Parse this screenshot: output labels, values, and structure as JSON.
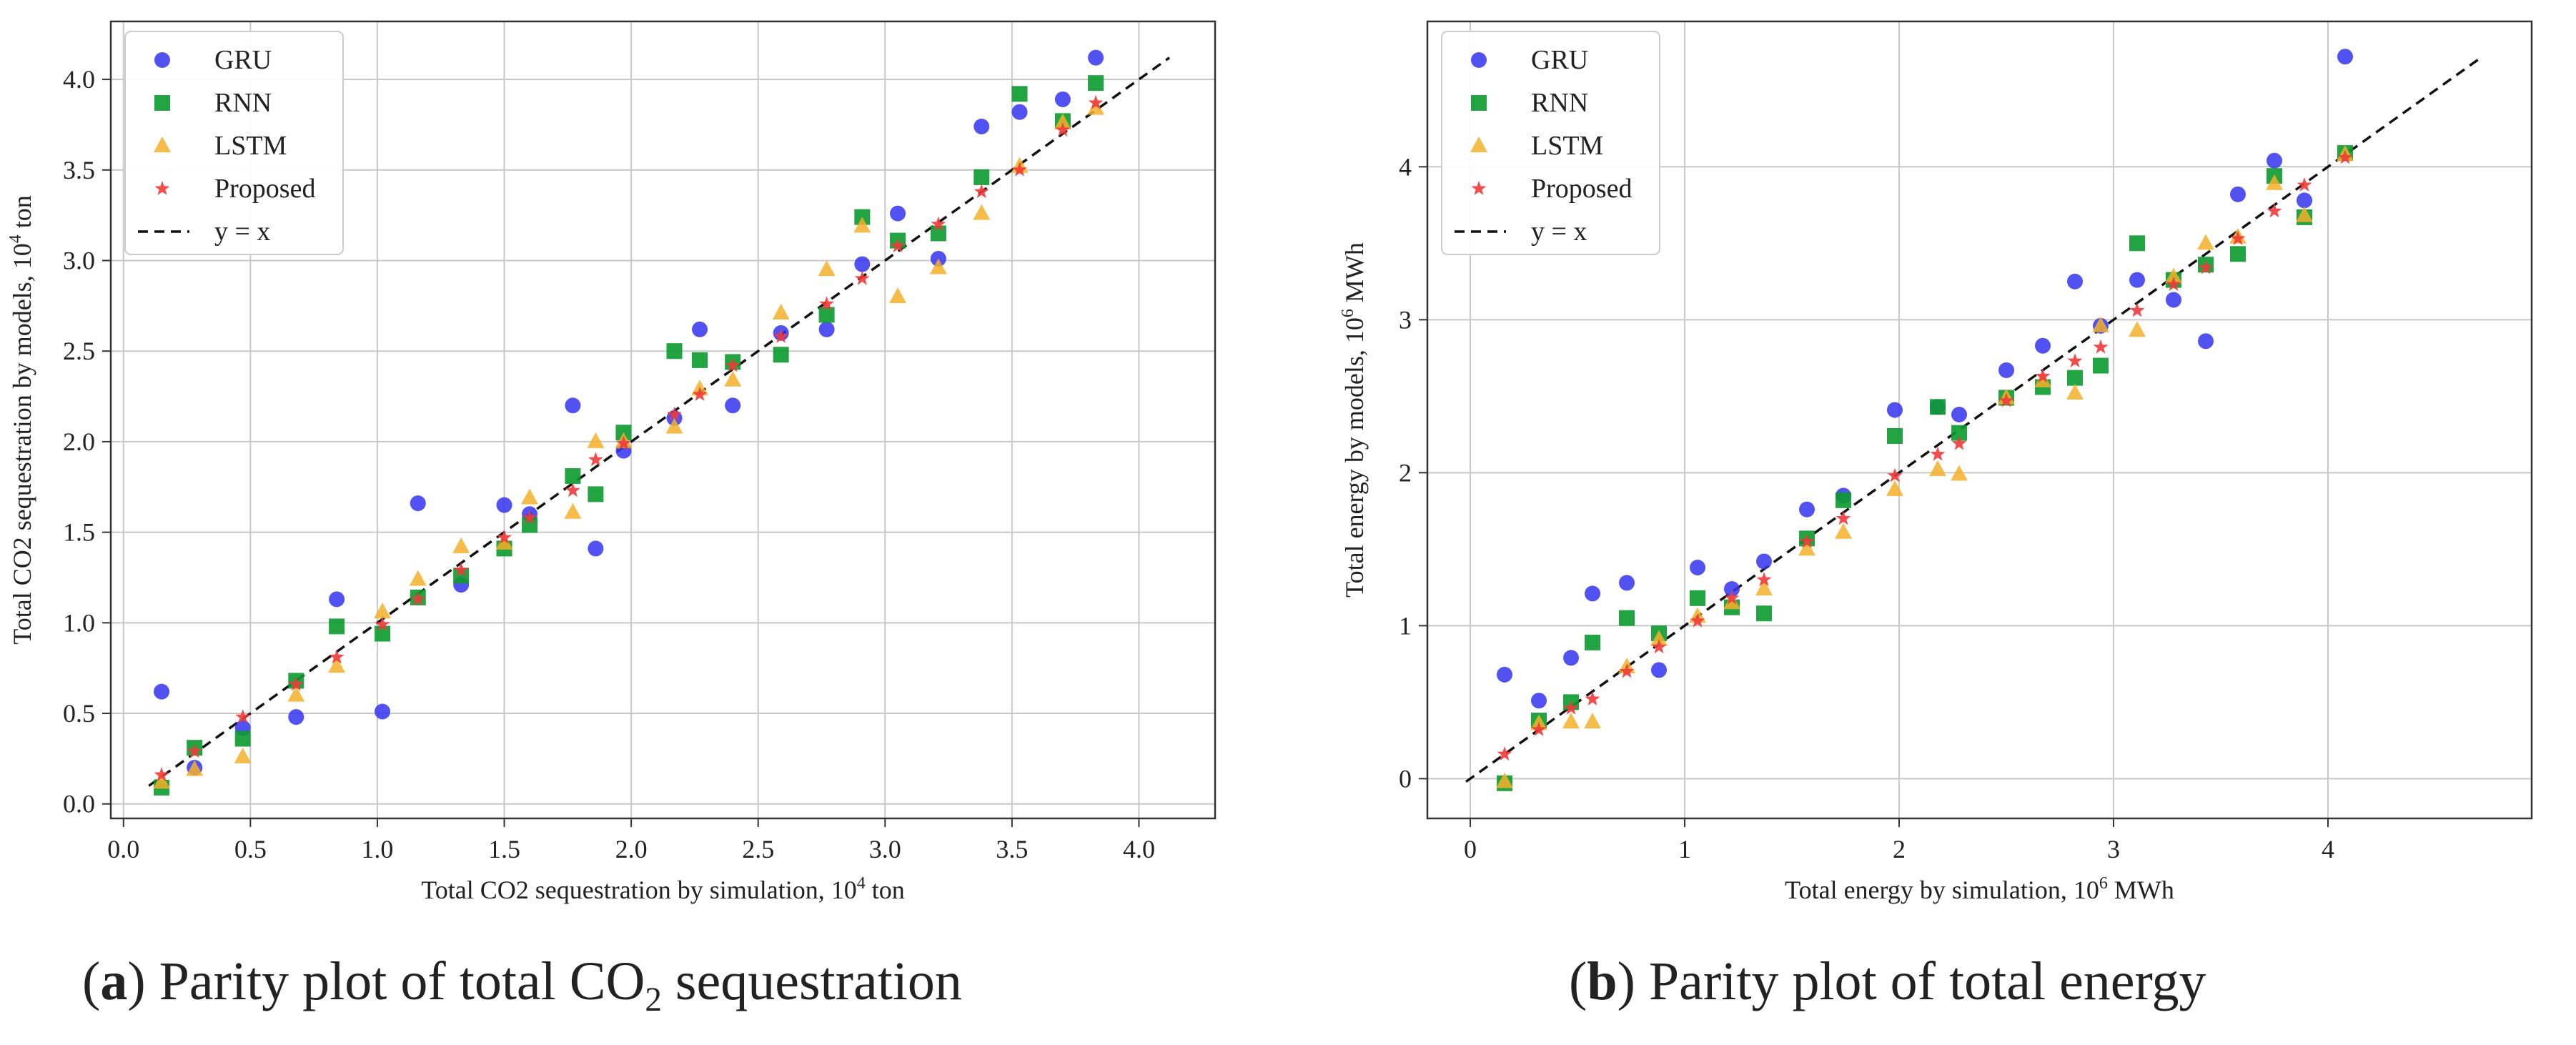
{
  "colors": {
    "gru": "#3434f0",
    "rnn": "#0a9a2e",
    "lstm": "#f5b02a",
    "proposed": "#f03a3a",
    "identity": "#111111",
    "grid": "#c8c8c8"
  },
  "legend_labels": [
    "GRU",
    "RNN",
    "LSTM",
    "Proposed",
    "y = x"
  ],
  "captions": {
    "a": {
      "letter": "a",
      "prefix": "Parity plot of total CO",
      "sub": "2",
      "suffix": " sequestration"
    },
    "b": {
      "letter": "b",
      "text": "Parity plot of total energy"
    }
  },
  "chart_data": [
    {
      "type": "scatter",
      "id": "a",
      "xlabel": {
        "pre": "Total CO2 sequestration by simulation, 10",
        "sup": "4",
        "post": " ton"
      },
      "ylabel": {
        "pre": "Total CO2 sequestration by models, 10",
        "sup": "4",
        "post": " ton"
      },
      "xlim": [
        -0.05,
        4.3
      ],
      "ylim": [
        -0.08,
        4.32
      ],
      "xticks": [
        0.0,
        0.5,
        1.0,
        1.5,
        2.0,
        2.5,
        3.0,
        3.5,
        4.0
      ],
      "xtick_labels": [
        "0.0",
        "0.5",
        "1.0",
        "1.5",
        "2.0",
        "2.5",
        "3.0",
        "3.5",
        "4.0"
      ],
      "yticks": [
        0.0,
        0.5,
        1.0,
        1.5,
        2.0,
        2.5,
        3.0,
        3.5,
        4.0
      ],
      "ytick_labels": [
        "0.0",
        "0.5",
        "1.0",
        "1.5",
        "2.0",
        "2.5",
        "3.0",
        "3.5",
        "4.0"
      ],
      "identity_line": [
        0.1,
        4.12
      ],
      "legend_position": "top-left",
      "series": [
        {
          "name": "GRU",
          "marker": "circle",
          "x": [
            0.15,
            0.28,
            0.47,
            0.68,
            0.84,
            1.02,
            1.16,
            1.33,
            1.5,
            1.6,
            1.77,
            1.86,
            1.97,
            2.17,
            2.27,
            2.4,
            2.59,
            2.77,
            2.91,
            3.05,
            3.21,
            3.38,
            3.53,
            3.7,
            3.83
          ],
          "y": [
            0.62,
            0.2,
            0.42,
            0.48,
            1.13,
            0.51,
            1.66,
            1.21,
            1.65,
            1.6,
            2.2,
            1.41,
            1.95,
            2.13,
            2.62,
            2.2,
            2.6,
            2.62,
            2.98,
            3.26,
            3.01,
            3.74,
            3.82,
            3.89,
            4.12
          ]
        },
        {
          "name": "RNN",
          "marker": "square",
          "x": [
            0.15,
            0.28,
            0.47,
            0.68,
            0.84,
            1.02,
            1.16,
            1.33,
            1.5,
            1.6,
            1.77,
            1.86,
            1.97,
            2.17,
            2.27,
            2.4,
            2.59,
            2.77,
            2.91,
            3.05,
            3.21,
            3.38,
            3.53,
            3.7,
            3.83
          ],
          "y": [
            0.09,
            0.31,
            0.36,
            0.68,
            0.98,
            0.94,
            1.14,
            1.26,
            1.41,
            1.54,
            1.81,
            1.71,
            2.05,
            2.5,
            2.45,
            2.44,
            2.48,
            2.7,
            3.24,
            3.11,
            3.15,
            3.46,
            3.92,
            3.77,
            3.98
          ]
        },
        {
          "name": "LSTM",
          "marker": "triangle",
          "x": [
            0.15,
            0.28,
            0.47,
            0.68,
            0.84,
            1.02,
            1.16,
            1.33,
            1.5,
            1.6,
            1.77,
            1.86,
            1.97,
            2.17,
            2.27,
            2.4,
            2.59,
            2.77,
            2.91,
            3.05,
            3.21,
            3.38,
            3.53,
            3.7,
            3.83
          ],
          "y": [
            0.12,
            0.19,
            0.26,
            0.6,
            0.76,
            1.06,
            1.24,
            1.42,
            1.44,
            1.69,
            1.61,
            2.0,
            2.0,
            2.08,
            2.29,
            2.34,
            2.71,
            2.95,
            3.19,
            2.8,
            2.96,
            3.26,
            3.52,
            3.76,
            3.84
          ]
        },
        {
          "name": "Proposed",
          "marker": "star",
          "x": [
            0.15,
            0.28,
            0.47,
            0.68,
            0.84,
            1.02,
            1.16,
            1.33,
            1.5,
            1.6,
            1.77,
            1.86,
            1.97,
            2.17,
            2.27,
            2.4,
            2.59,
            2.77,
            2.91,
            3.05,
            3.21,
            3.38,
            3.53,
            3.7,
            3.83
          ],
          "y": [
            0.16,
            0.29,
            0.48,
            0.66,
            0.81,
            0.99,
            1.13,
            1.29,
            1.47,
            1.58,
            1.73,
            1.9,
            1.99,
            2.15,
            2.26,
            2.42,
            2.58,
            2.76,
            2.9,
            3.08,
            3.2,
            3.38,
            3.5,
            3.72,
            3.87
          ]
        }
      ]
    },
    {
      "type": "scatter",
      "id": "b",
      "xlabel": {
        "pre": "Total energy by simulation, 10",
        "sup": "6",
        "post": " MWh"
      },
      "ylabel": {
        "pre": "Total energy by models, 10",
        "sup": "6",
        "post": " MWh"
      },
      "xlim": [
        -0.2,
        4.95
      ],
      "ylim": [
        -0.26,
        4.95
      ],
      "xticks": [
        0,
        1,
        2,
        3,
        4
      ],
      "xtick_labels": [
        "0",
        "1",
        "2",
        "3",
        "4"
      ],
      "yticks": [
        0,
        1,
        2,
        3,
        4
      ],
      "ytick_labels": [
        "0",
        "1",
        "2",
        "3",
        "4"
      ],
      "identity_line": [
        -0.02,
        4.72
      ],
      "legend_position": "top-left",
      "series": [
        {
          "name": "GRU",
          "marker": "circle",
          "x": [
            0.16,
            0.32,
            0.47,
            0.57,
            0.73,
            0.88,
            1.06,
            1.22,
            1.37,
            1.57,
            1.74,
            1.98,
            2.18,
            2.28,
            2.5,
            2.67,
            2.82,
            2.94,
            3.11,
            3.28,
            3.43,
            3.58,
            3.75,
            3.89,
            4.08
          ],
          "y": [
            0.68,
            0.51,
            0.79,
            1.21,
            1.28,
            0.71,
            1.38,
            1.24,
            1.42,
            1.76,
            1.85,
            2.41,
            2.43,
            2.38,
            2.67,
            2.83,
            3.25,
            2.96,
            3.26,
            3.13,
            2.86,
            3.82,
            4.04,
            3.78,
            4.72
          ]
        },
        {
          "name": "RNN",
          "marker": "square",
          "x": [
            0.16,
            0.32,
            0.47,
            0.57,
            0.73,
            0.88,
            1.06,
            1.22,
            1.37,
            1.57,
            1.74,
            1.98,
            2.18,
            2.28,
            2.5,
            2.67,
            2.82,
            2.94,
            3.11,
            3.28,
            3.43,
            3.58,
            3.75,
            3.89,
            4.08
          ],
          "y": [
            -0.03,
            0.38,
            0.5,
            0.89,
            1.05,
            0.95,
            1.18,
            1.12,
            1.08,
            1.57,
            1.82,
            2.24,
            2.43,
            2.26,
            2.49,
            2.56,
            2.62,
            2.7,
            3.5,
            3.26,
            3.36,
            3.43,
            3.94,
            3.67,
            4.09
          ]
        },
        {
          "name": "LSTM",
          "marker": "triangle",
          "x": [
            0.16,
            0.32,
            0.47,
            0.57,
            0.73,
            0.88,
            1.06,
            1.22,
            1.37,
            1.57,
            1.74,
            1.98,
            2.18,
            2.28,
            2.5,
            2.67,
            2.82,
            2.94,
            3.11,
            3.28,
            3.43,
            3.58,
            3.75,
            3.89,
            4.08
          ],
          "y": [
            -0.02,
            0.36,
            0.37,
            0.37,
            0.73,
            0.91,
            1.06,
            1.15,
            1.24,
            1.5,
            1.61,
            1.89,
            2.02,
            1.99,
            2.49,
            2.6,
            2.52,
            2.96,
            2.93,
            3.28,
            3.5,
            3.54,
            3.89,
            3.68,
            4.08
          ]
        },
        {
          "name": "Proposed",
          "marker": "star",
          "x": [
            0.16,
            0.32,
            0.47,
            0.57,
            0.73,
            0.88,
            1.06,
            1.22,
            1.37,
            1.57,
            1.74,
            1.98,
            2.18,
            2.28,
            2.5,
            2.67,
            2.82,
            2.94,
            3.11,
            3.28,
            3.43,
            3.58,
            3.75,
            3.89,
            4.08
          ],
          "y": [
            0.16,
            0.32,
            0.46,
            0.52,
            0.7,
            0.86,
            1.03,
            1.18,
            1.3,
            1.55,
            1.7,
            1.98,
            2.12,
            2.19,
            2.47,
            2.63,
            2.73,
            2.82,
            3.06,
            3.23,
            3.34,
            3.53,
            3.71,
            3.88,
            4.06
          ]
        }
      ]
    }
  ]
}
